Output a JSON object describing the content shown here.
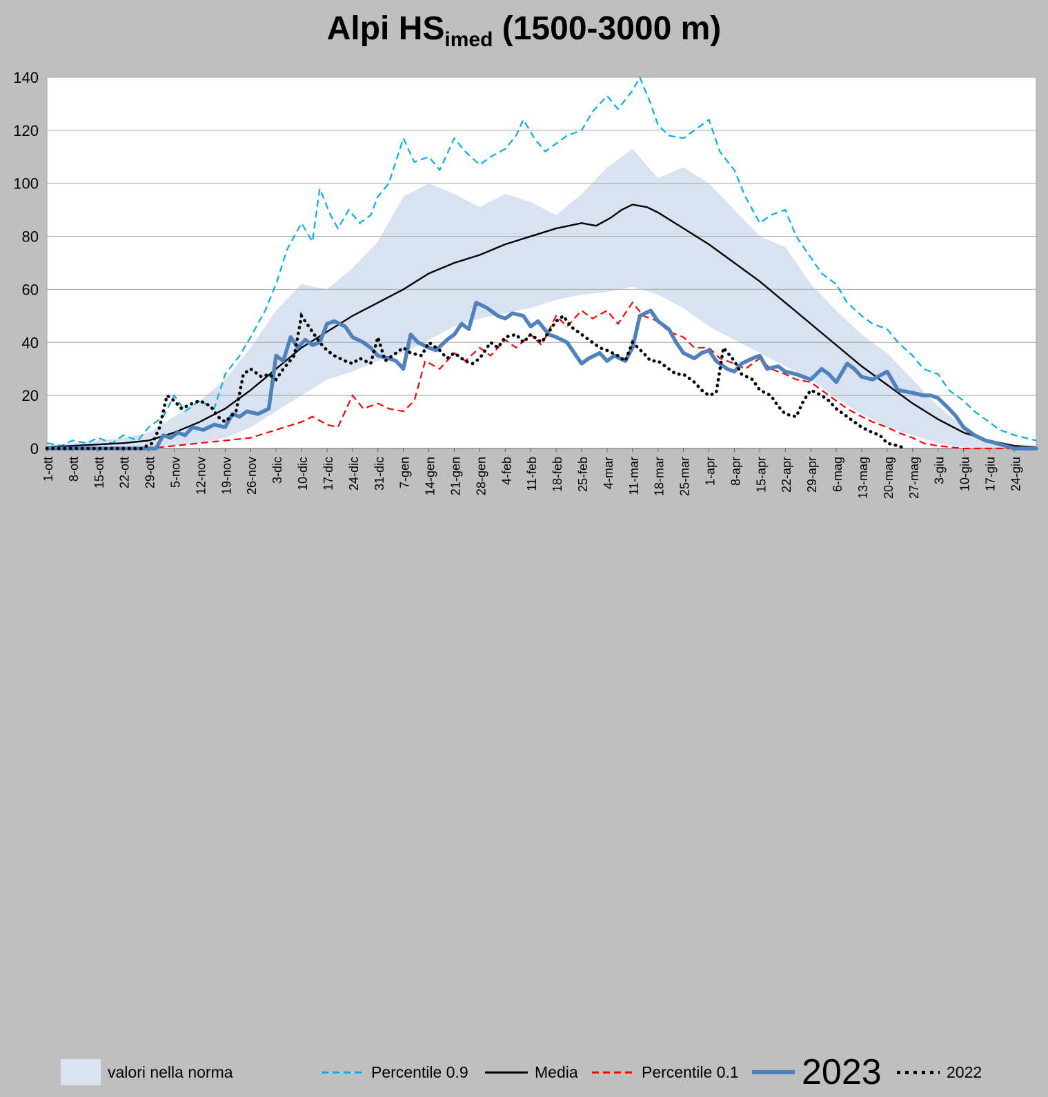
{
  "title": {
    "main": "Alpi HS",
    "subscript": "imed",
    "suffix": " (1500-3000 m)"
  },
  "colors": {
    "background": "#bfbfbf",
    "plot_background": "#ffffff",
    "gridline": "#a6a6a6",
    "band": "#d9e2f0",
    "percentile09": "#00b0f0",
    "media": "#000000",
    "percentile01": "#ff0000",
    "y2023": "#4f81bd",
    "y2022": "#000000"
  },
  "legend": {
    "items": [
      {
        "label": "valori nella norma"
      },
      {
        "label": "Percentile 0.9"
      },
      {
        "label": "Media"
      },
      {
        "label": "Percentile 0.1"
      },
      {
        "label": "2023"
      },
      {
        "label": "2022"
      }
    ]
  },
  "chart_data": {
    "type": "line",
    "title": "Alpi HSimed (1500-3000 m)",
    "xlabel": "",
    "ylabel": "",
    "ylim": [
      0,
      140
    ],
    "yticks": [
      0,
      20,
      40,
      60,
      80,
      100,
      120,
      140
    ],
    "grid": "horizontal",
    "legend_position": "bottom",
    "x_unit": "days since 1-ott",
    "x_range": [
      0,
      272
    ],
    "categories": [
      "1-ott",
      "8-ott",
      "15-ott",
      "22-ott",
      "29-ott",
      "5-nov",
      "12-nov",
      "19-nov",
      "26-nov",
      "3-dic",
      "10-dic",
      "17-dic",
      "24-dic",
      "31-dic",
      "7-gen",
      "14-gen",
      "21-gen",
      "28-gen",
      "4-feb",
      "11-feb",
      "18-feb",
      "25-feb",
      "4-mar",
      "11-mar",
      "18-mar",
      "25-mar",
      "1-apr",
      "8-apr",
      "15-apr",
      "22-apr",
      "29-apr",
      "6-mag",
      "13-mag",
      "20-mag",
      "27-mag",
      "3-giu",
      "10-giu",
      "17-giu",
      "24-giu"
    ],
    "tick_days": [
      0,
      7,
      14,
      21,
      28,
      35,
      42,
      49,
      56,
      63,
      70,
      77,
      84,
      91,
      98,
      105,
      112,
      119,
      126,
      133,
      140,
      147,
      154,
      161,
      168,
      175,
      182,
      189,
      196,
      203,
      210,
      217,
      224,
      231,
      238,
      245,
      252,
      259,
      266
    ],
    "band": {
      "name": "valori nella norma",
      "color": "#d9e2f0",
      "x": [
        0,
        7,
        14,
        21,
        28,
        35,
        42,
        49,
        56,
        63,
        70,
        77,
        84,
        91,
        98,
        105,
        112,
        119,
        126,
        133,
        140,
        147,
        154,
        161,
        168,
        175,
        182,
        189,
        196,
        203,
        210,
        217,
        224,
        231,
        238,
        245,
        252,
        259,
        266,
        272
      ],
      "high": [
        1,
        2,
        3,
        4,
        6,
        12,
        18,
        26,
        38,
        52,
        62,
        60,
        68,
        78,
        95,
        100,
        96,
        91,
        96,
        93,
        88,
        96,
        106,
        113,
        102,
        106,
        100,
        90,
        80,
        76,
        62,
        52,
        43,
        36,
        26,
        16,
        8,
        3,
        1,
        0.5
      ],
      "low": [
        0,
        0,
        0,
        0,
        0,
        1,
        2,
        4,
        8,
        14,
        20,
        26,
        29,
        33,
        36,
        41,
        46,
        49,
        51,
        53,
        56,
        58,
        59,
        61,
        58,
        53,
        46,
        41,
        36,
        31,
        26,
        19,
        13,
        8,
        5,
        2,
        0.5,
        0,
        0,
        0
      ]
    },
    "series": [
      {
        "name": "Percentile 0.9",
        "style": "dashed",
        "color": "#00b0f0",
        "x": [
          0,
          4,
          7,
          11,
          14,
          18,
          21,
          25,
          28,
          32,
          35,
          38,
          42,
          46,
          49,
          53,
          56,
          60,
          63,
          66,
          70,
          73,
          75,
          78,
          80,
          83,
          86,
          89,
          91,
          94,
          98,
          101,
          105,
          108,
          112,
          115,
          119,
          122,
          126,
          129,
          131,
          134,
          137,
          140,
          143,
          147,
          150,
          154,
          157,
          161,
          163,
          166,
          168,
          171,
          175,
          178,
          182,
          185,
          189,
          192,
          196,
          199,
          203,
          206,
          210,
          213,
          217,
          220,
          224,
          227,
          231,
          234,
          238,
          241,
          245,
          248,
          252,
          255,
          259,
          262,
          266,
          269,
          272
        ],
        "values": [
          2,
          1,
          3,
          2,
          4,
          2,
          5,
          3,
          8,
          12,
          20,
          14,
          18,
          15,
          28,
          35,
          42,
          52,
          62,
          75,
          85,
          78,
          98,
          88,
          83,
          90,
          85,
          88,
          95,
          100,
          117,
          108,
          110,
          105,
          117,
          112,
          107,
          110,
          113,
          118,
          124,
          117,
          112,
          115,
          118,
          120,
          127,
          133,
          128,
          135,
          140,
          130,
          122,
          118,
          117,
          120,
          124,
          112,
          105,
          95,
          85,
          88,
          90,
          80,
          72,
          66,
          62,
          55,
          50,
          47,
          45,
          40,
          35,
          30,
          28,
          22,
          18,
          14,
          10,
          7,
          5,
          4,
          3
        ]
      },
      {
        "name": "Media",
        "style": "solid",
        "color": "#000000",
        "x": [
          0,
          7,
          14,
          21,
          28,
          35,
          42,
          49,
          56,
          63,
          70,
          77,
          84,
          91,
          98,
          105,
          112,
          119,
          126,
          133,
          140,
          147,
          151,
          155,
          158,
          161,
          165,
          168,
          175,
          182,
          189,
          196,
          203,
          210,
          217,
          224,
          231,
          238,
          245,
          252,
          259,
          266,
          272
        ],
        "values": [
          0.5,
          1,
          1.5,
          2,
          3,
          6,
          10,
          15,
          22,
          30,
          38,
          44,
          50,
          55,
          60,
          66,
          70,
          73,
          77,
          80,
          83,
          85,
          84,
          87,
          90,
          92,
          91,
          89,
          83,
          77,
          70,
          63,
          55,
          47,
          39,
          31,
          24,
          17,
          11,
          6,
          3,
          1,
          0.5
        ]
      },
      {
        "name": "Percentile 0.1",
        "style": "dashed",
        "color": "#ff0000",
        "x": [
          0,
          28,
          35,
          42,
          49,
          56,
          63,
          70,
          73,
          77,
          80,
          84,
          87,
          91,
          94,
          98,
          101,
          104,
          108,
          112,
          115,
          119,
          122,
          126,
          129,
          133,
          136,
          140,
          143,
          147,
          150,
          154,
          157,
          161,
          164,
          168,
          171,
          175,
          178,
          182,
          185,
          189,
          192,
          196,
          199,
          203,
          206,
          210,
          213,
          217,
          220,
          224,
          227,
          231,
          234,
          238,
          241,
          245,
          252,
          259,
          266,
          272
        ],
        "values": [
          0,
          0,
          1,
          2,
          3,
          4,
          7,
          10,
          12,
          9,
          8,
          20,
          15,
          17,
          15,
          14,
          18,
          33,
          30,
          36,
          33,
          38,
          35,
          41,
          38,
          43,
          39,
          50,
          46,
          52,
          49,
          52,
          47,
          55,
          50,
          48,
          44,
          42,
          38,
          38,
          34,
          32,
          30,
          34,
          30,
          28,
          26,
          25,
          22,
          18,
          15,
          12,
          10,
          8,
          6,
          4,
          2,
          1,
          0,
          0,
          0,
          0
        ]
      },
      {
        "name": "2023",
        "style": "thick",
        "color": "#4f81bd",
        "x": [
          0,
          30,
          32,
          34,
          36,
          38,
          40,
          43,
          46,
          49,
          51,
          53,
          55,
          58,
          61,
          63,
          65,
          67,
          69,
          71,
          73,
          75,
          77,
          79,
          82,
          84,
          87,
          89,
          91,
          94,
          96,
          98,
          100,
          102,
          105,
          107,
          110,
          112,
          114,
          116,
          118,
          121,
          124,
          126,
          128,
          131,
          133,
          135,
          138,
          140,
          143,
          145,
          147,
          149,
          152,
          154,
          156,
          159,
          161,
          163,
          166,
          168,
          171,
          173,
          175,
          178,
          180,
          182,
          184,
          187,
          189,
          191,
          194,
          196,
          198,
          201,
          203,
          206,
          208,
          210,
          213,
          215,
          217,
          220,
          222,
          224,
          227,
          231,
          234,
          238,
          241,
          243,
          245,
          248,
          250,
          252,
          255,
          258,
          261,
          266,
          272
        ],
        "values": [
          0,
          0,
          5,
          4,
          6,
          5,
          8,
          7,
          9,
          8,
          13,
          12,
          14,
          13,
          15,
          35,
          33,
          42,
          38,
          41,
          39,
          40,
          47,
          48,
          46,
          42,
          40,
          38,
          35,
          34,
          33,
          30,
          43,
          40,
          38,
          37,
          41,
          43,
          47,
          45,
          55,
          53,
          50,
          49,
          51,
          50,
          46,
          48,
          43,
          42,
          40,
          36,
          32,
          34,
          36,
          33,
          35,
          33,
          38,
          50,
          52,
          48,
          45,
          40,
          36,
          34,
          36,
          37,
          33,
          30,
          29,
          32,
          34,
          35,
          30,
          31,
          29,
          28,
          27,
          26,
          30,
          28,
          25,
          32,
          30,
          27,
          26,
          29,
          22,
          21,
          20,
          20,
          19,
          15,
          12,
          8,
          5,
          3,
          2,
          0,
          0
        ]
      },
      {
        "name": "2022",
        "style": "dotted",
        "color": "#000000",
        "x": [
          0,
          26,
          29,
          31,
          33,
          35,
          37,
          40,
          42,
          45,
          47,
          49,
          52,
          54,
          56,
          59,
          61,
          63,
          65,
          68,
          70,
          72,
          75,
          77,
          79,
          82,
          84,
          86,
          89,
          91,
          93,
          96,
          98,
          100,
          103,
          105,
          108,
          110,
          112,
          115,
          117,
          119,
          122,
          124,
          126,
          129,
          131,
          133,
          136,
          138,
          140,
          142,
          144,
          147,
          150,
          152,
          154,
          157,
          159,
          161,
          164,
          166,
          168,
          171,
          173,
          175,
          178,
          180,
          182,
          184,
          186,
          189,
          191,
          194,
          196,
          199,
          201,
          203,
          206,
          208,
          210,
          213,
          215,
          217,
          220,
          222,
          224,
          227,
          229,
          231,
          234,
          236
        ],
        "values": [
          0,
          0,
          2,
          8,
          20,
          18,
          15,
          17,
          18,
          16,
          12,
          10,
          14,
          28,
          30,
          27,
          28,
          26,
          30,
          35,
          50,
          46,
          40,
          37,
          35,
          33,
          32,
          34,
          32,
          42,
          33,
          36,
          38,
          36,
          35,
          40,
          37,
          34,
          36,
          33,
          32,
          34,
          40,
          38,
          42,
          43,
          40,
          43,
          40,
          44,
          48,
          50,
          46,
          43,
          40,
          38,
          37,
          35,
          33,
          40,
          36,
          33,
          33,
          30,
          28,
          28,
          25,
          22,
          20,
          21,
          38,
          33,
          28,
          26,
          22,
          20,
          16,
          13,
          12,
          18,
          22,
          20,
          18,
          15,
          12,
          10,
          8,
          6,
          5,
          2,
          1,
          0
        ]
      }
    ]
  }
}
